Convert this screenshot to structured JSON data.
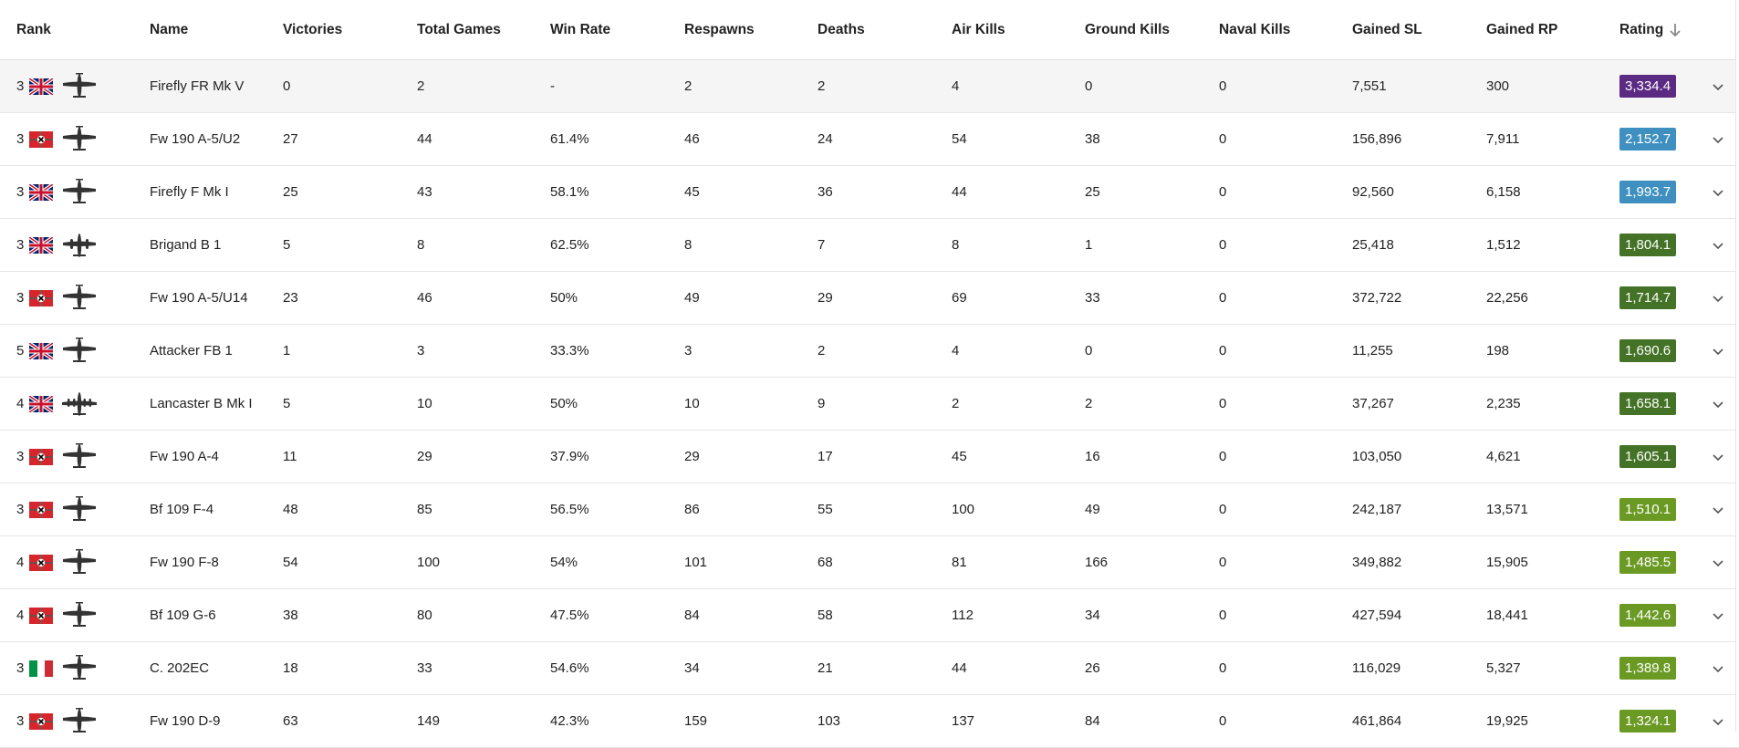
{
  "columns": {
    "rank": "Rank",
    "name": "Name",
    "victories": "Victories",
    "total_games": "Total Games",
    "win_rate": "Win Rate",
    "respawns": "Respawns",
    "deaths": "Deaths",
    "air_kills": "Air Kills",
    "ground_kills": "Ground Kills",
    "naval_kills": "Naval Kills",
    "gained_sl": "Gained SL",
    "gained_rp": "Gained RP",
    "rating": "Rating"
  },
  "sort": {
    "column": "rating",
    "direction": "desc",
    "icon": "arrow-down-icon"
  },
  "icons": {
    "row_toggle": "chevron-down-icon"
  },
  "rows": [
    {
      "rank": "3",
      "nation": "uk",
      "aircraft": "single-engine",
      "name": "Firefly FR Mk V",
      "victories": "0",
      "total_games": "2",
      "win_rate": "-",
      "respawns": "2",
      "deaths": "2",
      "air_kills": "4",
      "ground_kills": "0",
      "naval_kills": "0",
      "gained_sl": "7,551",
      "gained_rp": "300",
      "rating": "3,334.4",
      "rating_color": "#5b2a83"
    },
    {
      "rank": "3",
      "nation": "germany",
      "aircraft": "single-engine",
      "name": "Fw 190 A-5/U2",
      "victories": "27",
      "total_games": "44",
      "win_rate": "61.4%",
      "respawns": "46",
      "deaths": "24",
      "air_kills": "54",
      "ground_kills": "38",
      "naval_kills": "0",
      "gained_sl": "156,896",
      "gained_rp": "7,911",
      "rating": "2,152.7",
      "rating_color": "#3f90c1"
    },
    {
      "rank": "3",
      "nation": "uk",
      "aircraft": "single-engine",
      "name": "Firefly F Mk I",
      "victories": "25",
      "total_games": "43",
      "win_rate": "58.1%",
      "respawns": "45",
      "deaths": "36",
      "air_kills": "44",
      "ground_kills": "25",
      "naval_kills": "0",
      "gained_sl": "92,560",
      "gained_rp": "6,158",
      "rating": "1,993.7",
      "rating_color": "#3f90c1"
    },
    {
      "rank": "3",
      "nation": "uk",
      "aircraft": "twin-engine",
      "name": "Brigand B 1",
      "victories": "5",
      "total_games": "8",
      "win_rate": "62.5%",
      "respawns": "8",
      "deaths": "7",
      "air_kills": "8",
      "ground_kills": "1",
      "naval_kills": "0",
      "gained_sl": "25,418",
      "gained_rp": "1,512",
      "rating": "1,804.1",
      "rating_color": "#447327"
    },
    {
      "rank": "3",
      "nation": "germany",
      "aircraft": "single-engine",
      "name": "Fw 190 A-5/U14",
      "victories": "23",
      "total_games": "46",
      "win_rate": "50%",
      "respawns": "49",
      "deaths": "29",
      "air_kills": "69",
      "ground_kills": "33",
      "naval_kills": "0",
      "gained_sl": "372,722",
      "gained_rp": "22,256",
      "rating": "1,714.7",
      "rating_color": "#447327"
    },
    {
      "rank": "5",
      "nation": "uk",
      "aircraft": "single-engine",
      "name": "Attacker FB 1",
      "victories": "1",
      "total_games": "3",
      "win_rate": "33.3%",
      "respawns": "3",
      "deaths": "2",
      "air_kills": "4",
      "ground_kills": "0",
      "naval_kills": "0",
      "gained_sl": "11,255",
      "gained_rp": "198",
      "rating": "1,690.6",
      "rating_color": "#447327"
    },
    {
      "rank": "4",
      "nation": "uk",
      "aircraft": "four-engine",
      "name": "Lancaster B Mk I",
      "victories": "5",
      "total_games": "10",
      "win_rate": "50%",
      "respawns": "10",
      "deaths": "9",
      "air_kills": "2",
      "ground_kills": "2",
      "naval_kills": "0",
      "gained_sl": "37,267",
      "gained_rp": "2,235",
      "rating": "1,658.1",
      "rating_color": "#447327"
    },
    {
      "rank": "3",
      "nation": "germany",
      "aircraft": "single-engine",
      "name": "Fw 190 A-4",
      "victories": "11",
      "total_games": "29",
      "win_rate": "37.9%",
      "respawns": "29",
      "deaths": "17",
      "air_kills": "45",
      "ground_kills": "16",
      "naval_kills": "0",
      "gained_sl": "103,050",
      "gained_rp": "4,621",
      "rating": "1,605.1",
      "rating_color": "#447327"
    },
    {
      "rank": "3",
      "nation": "germany",
      "aircraft": "single-engine",
      "name": "Bf 109 F-4",
      "victories": "48",
      "total_games": "85",
      "win_rate": "56.5%",
      "respawns": "86",
      "deaths": "55",
      "air_kills": "100",
      "ground_kills": "49",
      "naval_kills": "0",
      "gained_sl": "242,187",
      "gained_rp": "13,571",
      "rating": "1,510.1",
      "rating_color": "#6a9a23"
    },
    {
      "rank": "4",
      "nation": "germany",
      "aircraft": "single-engine",
      "name": "Fw 190 F-8",
      "victories": "54",
      "total_games": "100",
      "win_rate": "54%",
      "respawns": "101",
      "deaths": "68",
      "air_kills": "81",
      "ground_kills": "166",
      "naval_kills": "0",
      "gained_sl": "349,882",
      "gained_rp": "15,905",
      "rating": "1,485.5",
      "rating_color": "#6a9a23"
    },
    {
      "rank": "4",
      "nation": "germany",
      "aircraft": "single-engine",
      "name": "Bf 109 G-6",
      "victories": "38",
      "total_games": "80",
      "win_rate": "47.5%",
      "respawns": "84",
      "deaths": "58",
      "air_kills": "112",
      "ground_kills": "34",
      "naval_kills": "0",
      "gained_sl": "427,594",
      "gained_rp": "18,441",
      "rating": "1,442.6",
      "rating_color": "#6a9a23"
    },
    {
      "rank": "3",
      "nation": "italy",
      "aircraft": "single-engine",
      "name": "C. 202EC",
      "victories": "18",
      "total_games": "33",
      "win_rate": "54.6%",
      "respawns": "34",
      "deaths": "21",
      "air_kills": "44",
      "ground_kills": "26",
      "naval_kills": "0",
      "gained_sl": "116,029",
      "gained_rp": "5,327",
      "rating": "1,389.8",
      "rating_color": "#6a9a23"
    },
    {
      "rank": "3",
      "nation": "germany",
      "aircraft": "single-engine",
      "name": "Fw 190 D-9",
      "victories": "63",
      "total_games": "149",
      "win_rate": "42.3%",
      "respawns": "159",
      "deaths": "103",
      "air_kills": "137",
      "ground_kills": "84",
      "naval_kills": "0",
      "gained_sl": "461,864",
      "gained_rp": "19,925",
      "rating": "1,324.1",
      "rating_color": "#6a9a23"
    }
  ]
}
